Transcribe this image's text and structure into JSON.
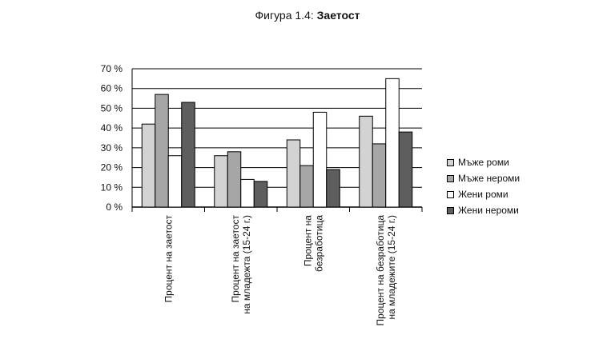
{
  "title": {
    "prefix": "Фигура 1.4:",
    "main": "Заетост"
  },
  "chart_data": {
    "type": "bar",
    "categories": [
      [
        "Процент на заетост"
      ],
      [
        "Процент на заетост",
        "на младежта (15-24 г.)"
      ],
      [
        "Процент на",
        "безработица"
      ],
      [
        "Процент на безработица",
        "на младежите (15-24 г.)"
      ]
    ],
    "series": [
      {
        "name": "Мъже роми",
        "color": "#d3d3d3",
        "values": [
          42,
          26,
          34,
          46
        ]
      },
      {
        "name": "Мъже нероми",
        "color": "#a6a6a6",
        "values": [
          57,
          28,
          21,
          32
        ]
      },
      {
        "name": "Жени роми",
        "color": "#ffffff",
        "values": [
          26,
          14,
          48,
          65
        ]
      },
      {
        "name": "Жени нероми",
        "color": "#5e5e5e",
        "values": [
          53,
          13,
          19,
          38
        ]
      }
    ],
    "ylim": [
      0,
      70
    ],
    "yticks": [
      "0 %",
      "10 %",
      "20 %",
      "30 %",
      "40 %",
      "50 %",
      "60 %",
      "70 %"
    ],
    "grid": true,
    "legend_position": "right"
  }
}
